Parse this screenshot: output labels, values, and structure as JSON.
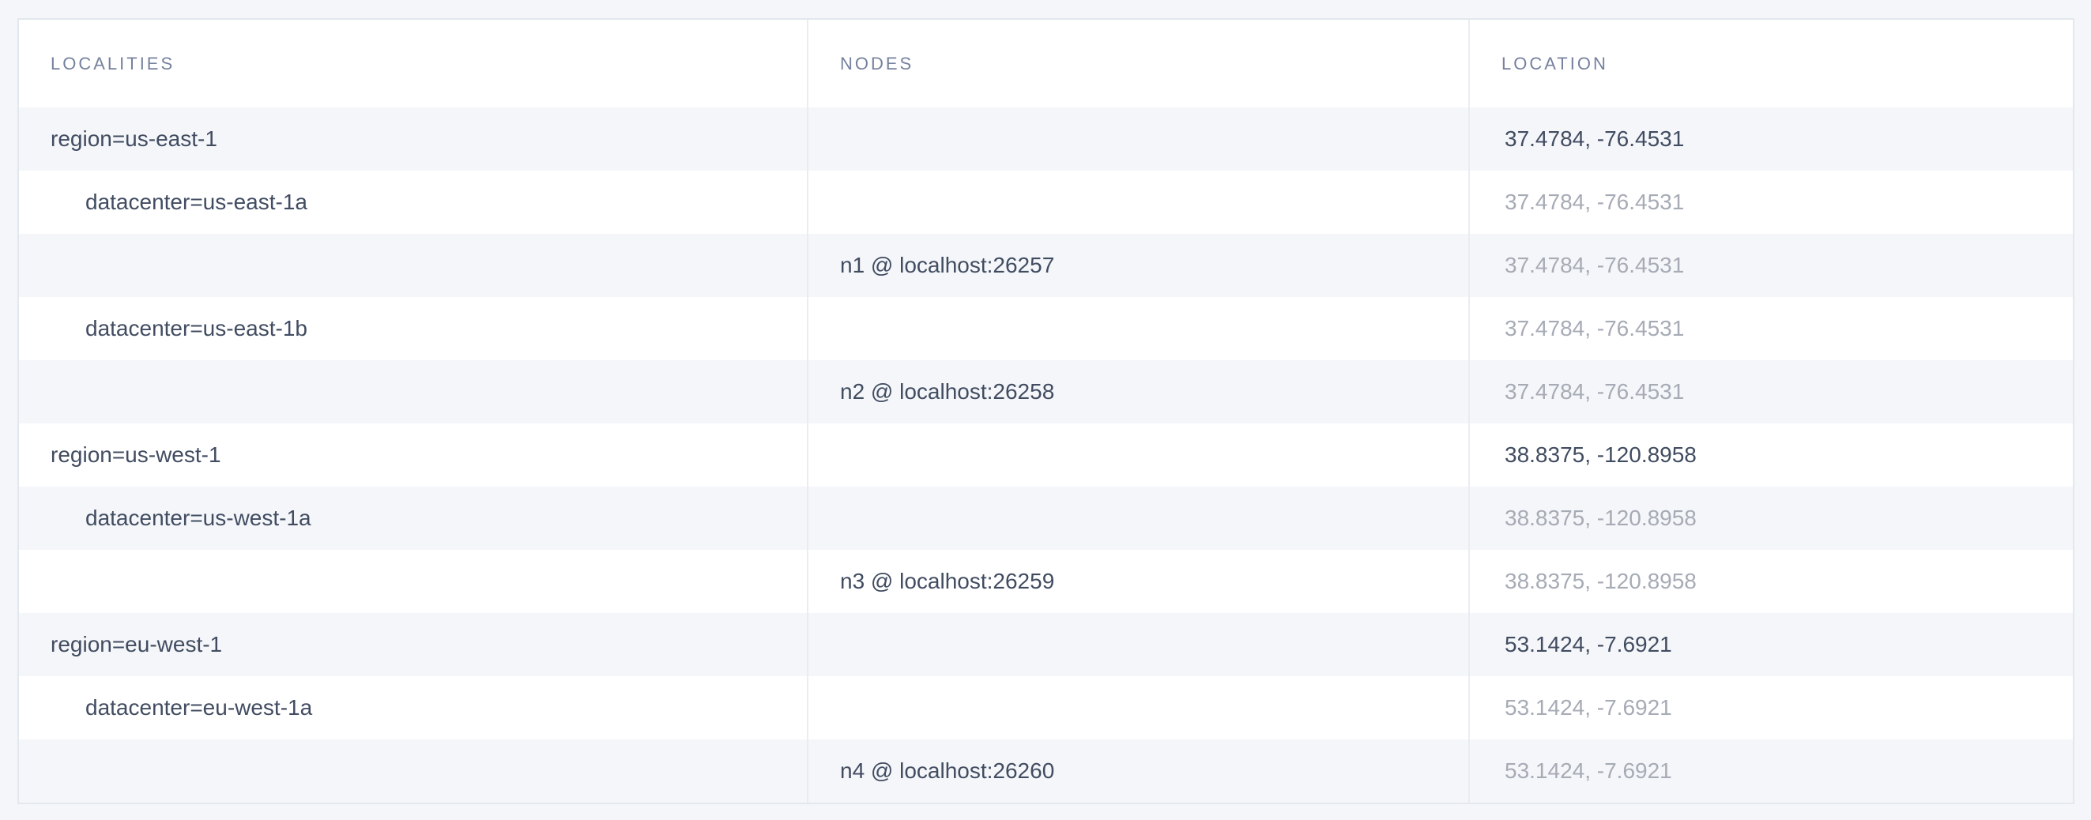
{
  "colors": {
    "page_bg": "#f4f6fa",
    "table_bg": "#ffffff",
    "zebra_bg": "#f4f6f9",
    "table_border": "#e2e8ee",
    "grid_line": "#e9edf2",
    "header_text": "#76819e",
    "text_dark": "#414c61",
    "text_faded": "#a6abb5"
  },
  "table": {
    "columns": [
      {
        "label": "LOCALITIES"
      },
      {
        "label": "NODES"
      },
      {
        "label": "LOCATION"
      }
    ],
    "rows": [
      {
        "type": "region",
        "locality": "region=us-east-1",
        "node": "",
        "location": "37.4784, -76.4531",
        "location_emphasis": "dark"
      },
      {
        "type": "datacenter",
        "locality": "datacenter=us-east-1a",
        "node": "",
        "location": "37.4784, -76.4531",
        "location_emphasis": "faded"
      },
      {
        "type": "node",
        "locality": "",
        "node": "n1 @ localhost:26257",
        "location": "37.4784, -76.4531",
        "location_emphasis": "faded"
      },
      {
        "type": "datacenter",
        "locality": "datacenter=us-east-1b",
        "node": "",
        "location": "37.4784, -76.4531",
        "location_emphasis": "faded"
      },
      {
        "type": "node",
        "locality": "",
        "node": "n2 @ localhost:26258",
        "location": "37.4784, -76.4531",
        "location_emphasis": "faded"
      },
      {
        "type": "region",
        "locality": "region=us-west-1",
        "node": "",
        "location": "38.8375, -120.8958",
        "location_emphasis": "dark"
      },
      {
        "type": "datacenter",
        "locality": "datacenter=us-west-1a",
        "node": "",
        "location": "38.8375, -120.8958",
        "location_emphasis": "faded"
      },
      {
        "type": "node",
        "locality": "",
        "node": "n3 @ localhost:26259",
        "location": "38.8375, -120.8958",
        "location_emphasis": "faded"
      },
      {
        "type": "region",
        "locality": "region=eu-west-1",
        "node": "",
        "location": "53.1424, -7.6921",
        "location_emphasis": "dark"
      },
      {
        "type": "datacenter",
        "locality": "datacenter=eu-west-1a",
        "node": "",
        "location": "53.1424, -7.6921",
        "location_emphasis": "faded"
      },
      {
        "type": "node",
        "locality": "",
        "node": "n4 @ localhost:26260",
        "location": "53.1424, -7.6921",
        "location_emphasis": "faded"
      }
    ]
  }
}
